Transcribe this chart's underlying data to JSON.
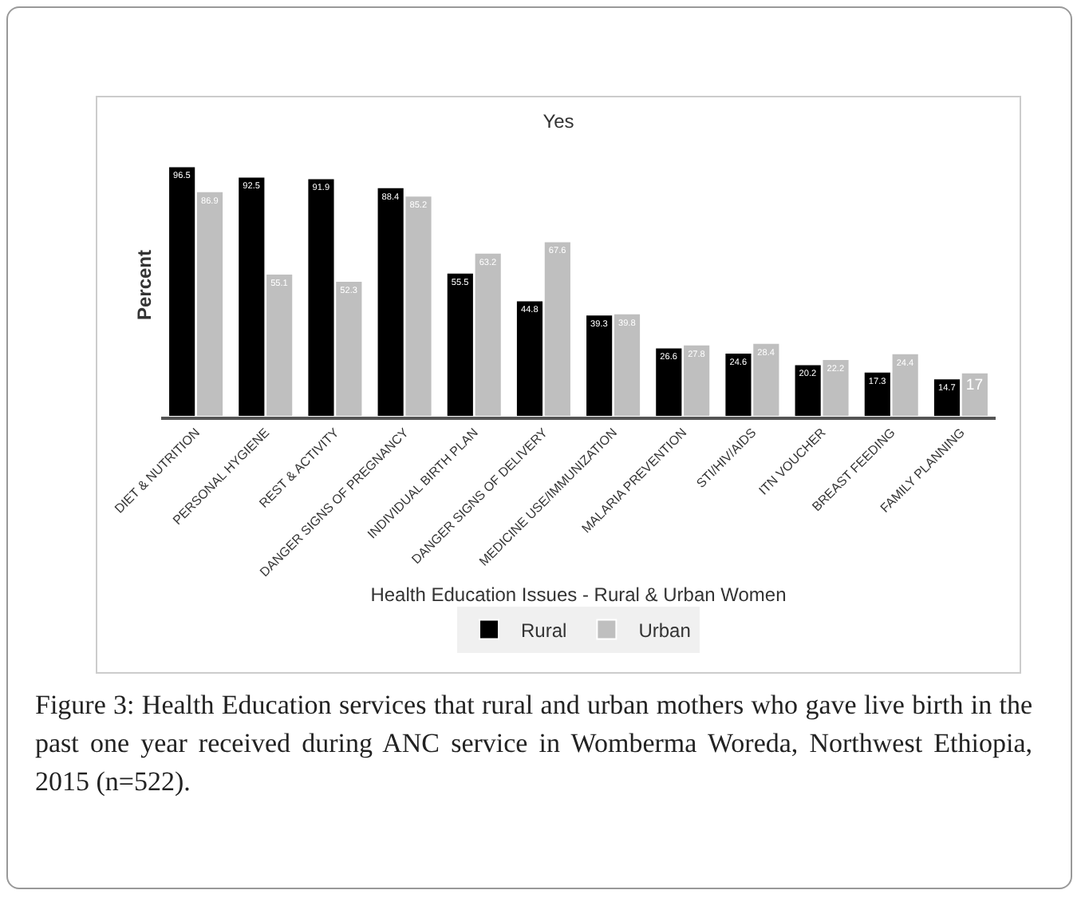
{
  "chart_data": {
    "type": "bar",
    "title": "Yes",
    "xlabel": "Health Education Issues - Rural & Urban Women",
    "ylabel": "Percent",
    "categories": [
      "DIET & NUTRITION",
      "PERSONAL HYGIENE",
      "REST & ACTIVITY",
      "DANGER SIGNS OF PREGNANCY",
      "INDIVIDUAL BIRTH PLAN",
      "DANGER SIGNS OF DELIVERY",
      "MEDICINE USE/IMMUNIZATION",
      "MALARIA PREVENTION",
      "STI/HIV/AIDS",
      "ITN VOUCHER",
      "BREAST FEEDING",
      "FAMILY PLANNING"
    ],
    "series": [
      {
        "name": "Rural",
        "color": "#000000",
        "values": [
          96.5,
          92.5,
          91.9,
          88.4,
          55.5,
          44.8,
          39.3,
          26.6,
          24.6,
          20.2,
          17.3,
          14.7
        ]
      },
      {
        "name": "Urban",
        "color": "#bfbfbf",
        "values": [
          86.9,
          55.1,
          52.3,
          85.2,
          63.2,
          67.6,
          39.8,
          27.8,
          28.4,
          22.2,
          24.4,
          17
        ]
      }
    ],
    "data_labels": true,
    "grid": false,
    "legend": "bottom",
    "annotations": [
      "Figure 3: Health Education services that rural and urban mothers who gave live birth in the past one year received during ANC service in Womberma Woreda, Northwest Ethiopia, 2015 (n=522)."
    ]
  }
}
